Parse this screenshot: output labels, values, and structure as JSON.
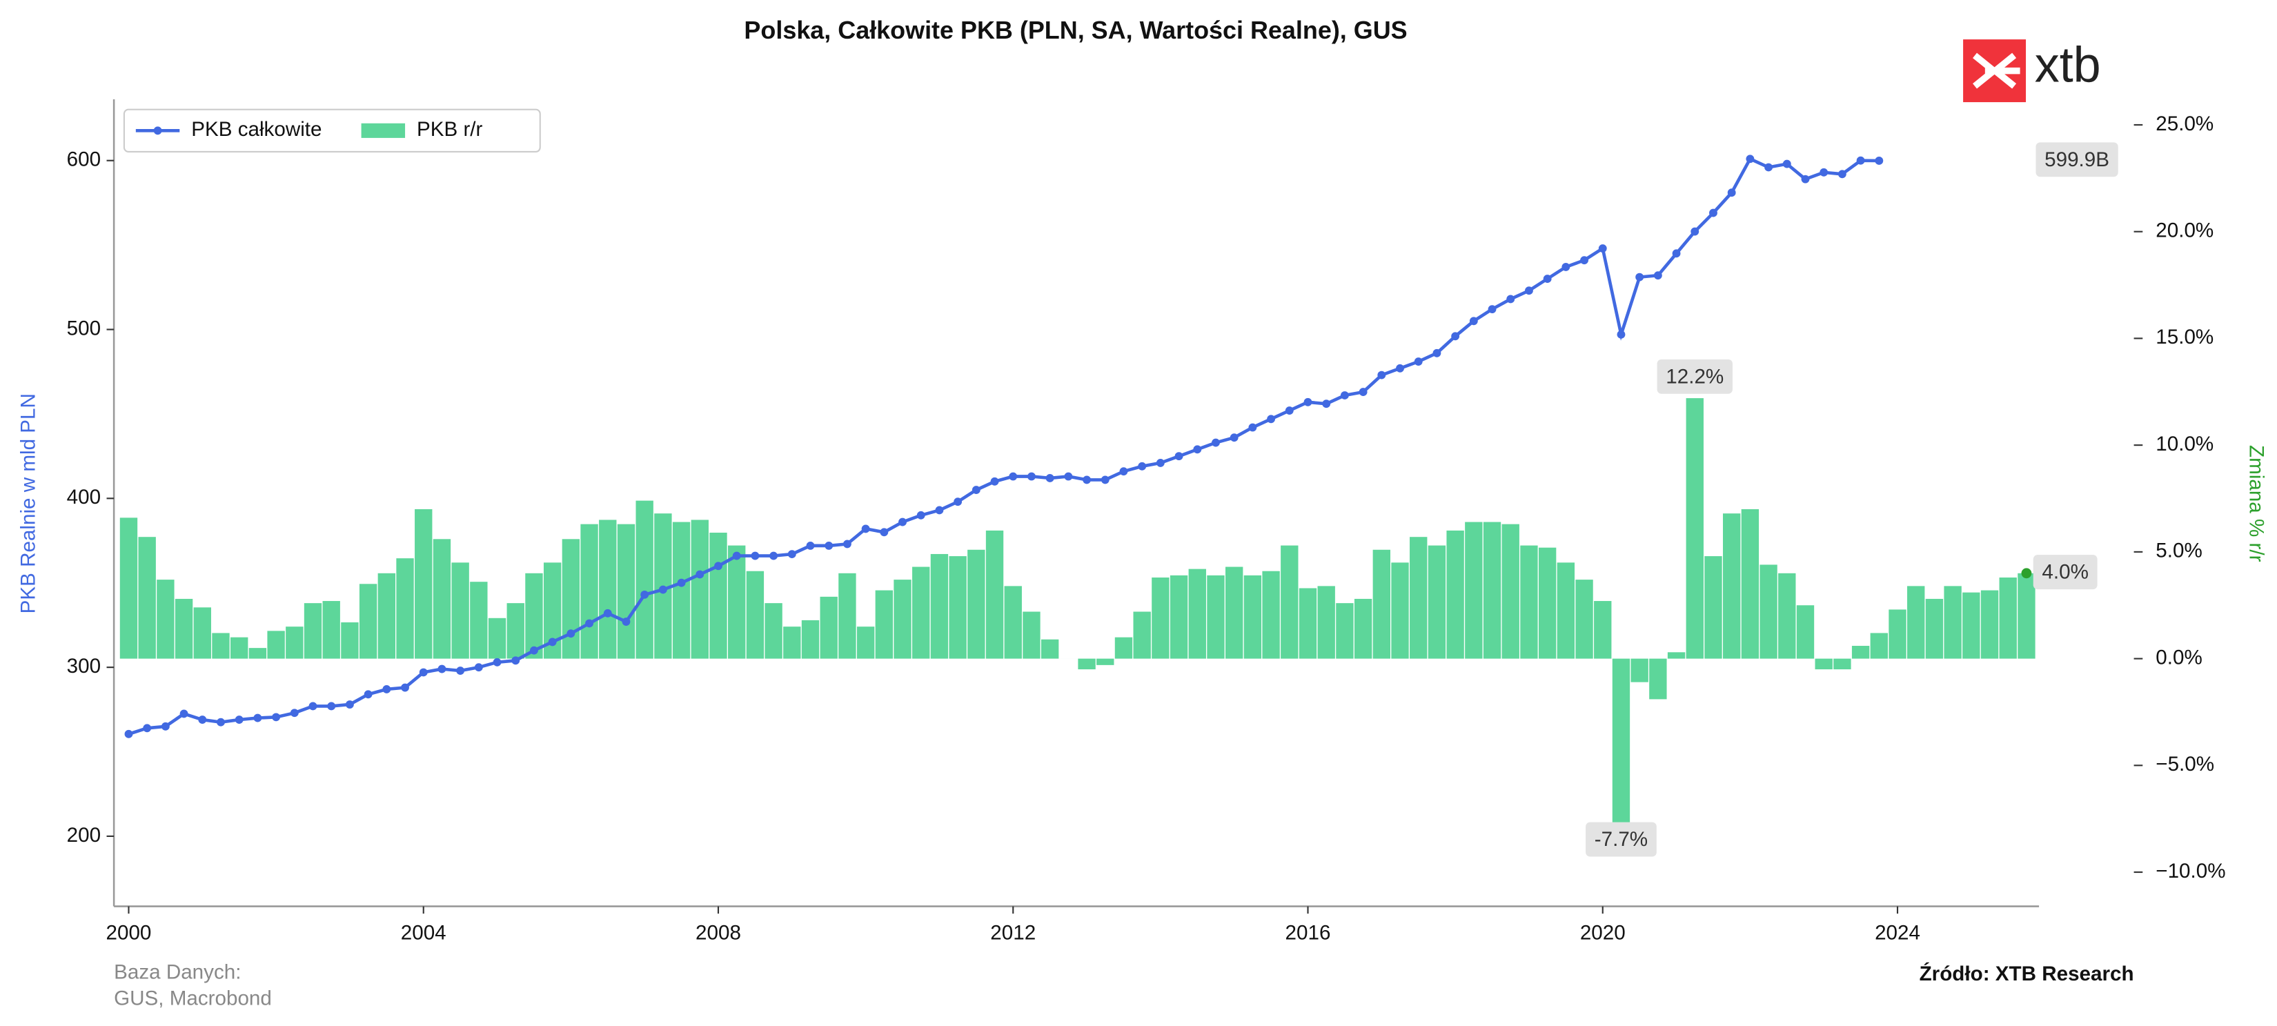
{
  "chart_data": {
    "type": "line_bar",
    "title": "Polska, Całkowite PKB (PLN, SA, Wartości Realne), GUS",
    "y_label": "PKB Realnie w mld PLN",
    "y2_label": "Zmiana % r/r",
    "source_title": "Baza Danych:",
    "source_text": "GUS, Macrobond",
    "credit": "Źródło: XTB Research",
    "logo": "xtb",
    "legend": "upper left",
    "x": [
      2000,
      2000.25,
      2000.5,
      2000.75,
      2001,
      2001.25,
      2001.5,
      2001.75,
      2002,
      2002.25,
      2002.5,
      2002.75,
      2003,
      2003.25,
      2003.5,
      2003.75,
      2004,
      2004.25,
      2004.5,
      2004.75,
      2005,
      2005.25,
      2005.5,
      2005.75,
      2006,
      2006.25,
      2006.5,
      2006.75,
      2007,
      2007.25,
      2007.5,
      2007.75,
      2008,
      2008.25,
      2008.5,
      2008.75,
      2009,
      2009.25,
      2009.5,
      2009.75,
      2010,
      2010.25,
      2010.5,
      2010.75,
      2011,
      2011.25,
      2011.5,
      2011.75,
      2012,
      2012.25,
      2012.5,
      2012.75,
      2013,
      2013.25,
      2013.5,
      2013.75,
      2014,
      2014.25,
      2014.5,
      2014.75,
      2015,
      2015.25,
      2015.5,
      2015.75,
      2016,
      2016.25,
      2016.5,
      2016.75,
      2017,
      2017.25,
      2017.5,
      2017.75,
      2018,
      2018.25,
      2018.5,
      2018.75,
      2019,
      2019.25,
      2019.5,
      2019.75,
      2020,
      2020.25,
      2020.5,
      2020.75,
      2021,
      2021.25,
      2021.5,
      2021.75,
      2022,
      2022.25,
      2022.5,
      2022.75,
      2023,
      2023.25,
      2023.5,
      2023.75,
      2024,
      2024.25,
      2024.5,
      2024.75,
      2025,
      2025.25,
      2025.5,
      2025.75
    ],
    "series": [
      {
        "name": "PKB całkowite",
        "kind": "line",
        "color": "#4169e1",
        "values": [
          260.5,
          264,
          265,
          272.5,
          269,
          267.5,
          269,
          270,
          270.5,
          273,
          277,
          277,
          278,
          284,
          287,
          288,
          297,
          299,
          298,
          300,
          303,
          304,
          310,
          315,
          320,
          326,
          332,
          327,
          343,
          346,
          350,
          355,
          360,
          366,
          366,
          366,
          367,
          372,
          372,
          373,
          382,
          380,
          386,
          390,
          393,
          398,
          405,
          410,
          413,
          413,
          412,
          413,
          411,
          411,
          416,
          419,
          421,
          425,
          429,
          433,
          436,
          442,
          447,
          452,
          457,
          456,
          461,
          463,
          473,
          477,
          481,
          486,
          496,
          505,
          512,
          518,
          523,
          530,
          537,
          541,
          548,
          497,
          531,
          532,
          545,
          558,
          569,
          581,
          601,
          596,
          598,
          589,
          593,
          592,
          600,
          599.9,
          null,
          null,
          null,
          null,
          null,
          null,
          null,
          null
        ],
        "value_labels": [
          null,
          null,
          null,
          null,
          null,
          null,
          null,
          null,
          null,
          null,
          null,
          null,
          null,
          null,
          null,
          null,
          null,
          null,
          null,
          null,
          null,
          null,
          null,
          null,
          null,
          null,
          null,
          null,
          null,
          null,
          null,
          null,
          null,
          null,
          null,
          null,
          null,
          null,
          null,
          null,
          null,
          null,
          null,
          null,
          null,
          null,
          null,
          null,
          null,
          null,
          null,
          null,
          null,
          null,
          null,
          null,
          null,
          null,
          null,
          null,
          null,
          null,
          null,
          null,
          null,
          null,
          null,
          null,
          null,
          null,
          null,
          null,
          null,
          null,
          null,
          null,
          null,
          null,
          null,
          null,
          null,
          null,
          null,
          null,
          null,
          null,
          null,
          null,
          null,
          null,
          null,
          null,
          null,
          null,
          null,
          "599.9B",
          null,
          null,
          null,
          null,
          null,
          null,
          null,
          null
        ]
      },
      {
        "name": "PKB r/r",
        "kind": "bar",
        "axis": "y2",
        "color": "#5dd69a",
        "values": [
          6.6,
          5.7,
          3.7,
          2.8,
          2.4,
          1.2,
          1.0,
          0.5,
          1.3,
          1.5,
          2.6,
          2.7,
          1.7,
          3.5,
          4.0,
          4.7,
          7.0,
          5.6,
          4.5,
          3.6,
          1.9,
          2.6,
          4.0,
          4.5,
          5.6,
          6.3,
          6.5,
          6.3,
          7.4,
          6.8,
          6.4,
          6.5,
          5.9,
          5.3,
          4.1,
          2.6,
          1.5,
          1.8,
          2.9,
          4.0,
          1.5,
          3.2,
          3.7,
          4.3,
          4.9,
          4.8,
          5.1,
          6.0,
          3.4,
          2.2,
          0.9,
          0.0,
          -0.5,
          -0.3,
          1.0,
          2.2,
          3.8,
          3.9,
          4.2,
          3.9,
          4.3,
          3.9,
          4.1,
          5.3,
          3.3,
          3.4,
          2.6,
          2.8,
          5.1,
          4.5,
          5.7,
          5.3,
          6.0,
          6.4,
          6.4,
          6.3,
          5.3,
          5.2,
          4.5,
          3.7,
          2.7,
          -7.7,
          -1.1,
          -1.9,
          0.3,
          12.2,
          4.8,
          6.8,
          7.0,
          4.4,
          4.0,
          2.5,
          -0.5,
          -0.5,
          0.6,
          1.2,
          2.3,
          3.4,
          2.8,
          3.4,
          3.1,
          3.2,
          3.8,
          4.0
        ],
        "value_labels": [
          null,
          null,
          null,
          null,
          null,
          null,
          null,
          null,
          null,
          null,
          null,
          null,
          null,
          null,
          null,
          null,
          null,
          null,
          null,
          null,
          null,
          null,
          null,
          null,
          null,
          null,
          null,
          null,
          null,
          null,
          null,
          null,
          null,
          null,
          null,
          null,
          null,
          null,
          null,
          null,
          null,
          null,
          null,
          null,
          null,
          null,
          null,
          null,
          null,
          null,
          null,
          null,
          null,
          null,
          null,
          null,
          null,
          null,
          null,
          null,
          null,
          null,
          null,
          null,
          null,
          null,
          null,
          null,
          null,
          null,
          null,
          null,
          null,
          null,
          null,
          null,
          null,
          null,
          null,
          null,
          null,
          "-7.7%",
          null,
          null,
          null,
          "12.2%",
          null,
          null,
          null,
          null,
          null,
          null,
          null,
          null,
          null,
          null,
          null,
          null,
          null,
          null,
          null,
          null,
          null,
          "4.0%"
        ]
      }
    ],
    "xlim": [
      1999.8,
      2025.92
    ],
    "xticks": [
      2000,
      2004,
      2008,
      2012,
      2016,
      2020,
      2024
    ],
    "ylim": [
      158.5,
      636.3
    ],
    "yticks": [
      200,
      300,
      400,
      500,
      600
    ],
    "y2lim": [
      -11.6,
      26.2
    ],
    "y2ticks": [
      {
        "value": -10,
        "label": "−10.0%"
      },
      {
        "value": -5,
        "label": "−5.0%"
      },
      {
        "value": 0,
        "label": "0.0%"
      },
      {
        "value": 5,
        "label": "5.0%"
      },
      {
        "value": 10,
        "label": "10.0%"
      },
      {
        "value": 15,
        "label": "15.0%"
      },
      {
        "value": 20,
        "label": "20.0%"
      },
      {
        "value": 25,
        "label": "25.0%"
      }
    ],
    "grid": false
  }
}
